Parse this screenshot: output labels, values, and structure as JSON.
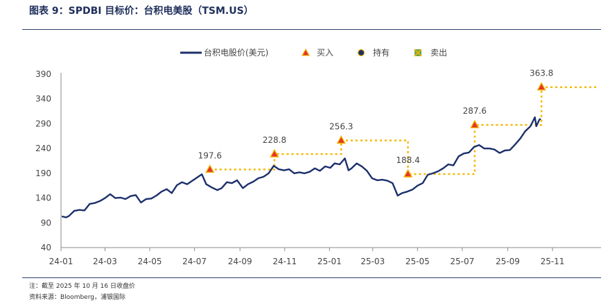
{
  "header": {
    "title": "图表 9：SPDBI 目标价：台积电美股（TSM.US）"
  },
  "footer": {
    "note": "注：截至 2025 年 10 月 16 日收盘价",
    "source": "资料来源：Bloomberg，浦银国际"
  },
  "colors": {
    "line": "#1b2f6b",
    "buy_fill": "#e7322b",
    "buy_stroke": "#f2b400",
    "dotted": "#f5b800",
    "hold_fill": "#1b2f6b",
    "sell_fill": "#6aa84f"
  },
  "chart_data": {
    "type": "line",
    "title": "",
    "xlabel": "",
    "ylabel": "",
    "ylim": [
      40,
      390
    ],
    "xlim": [
      "2024-01-01",
      "2025-12-31"
    ],
    "grid": false,
    "legend_position": "top-center",
    "y_ticks": [
      "40",
      "90",
      "140",
      "190",
      "240",
      "290",
      "340",
      "390"
    ],
    "x_ticks": [
      {
        "label": "24-01",
        "date": "2024-01-01"
      },
      {
        "label": "24-03",
        "date": "2024-03-01"
      },
      {
        "label": "24-05",
        "date": "2024-05-01"
      },
      {
        "label": "24-07",
        "date": "2024-07-01"
      },
      {
        "label": "24-09",
        "date": "2024-09-01"
      },
      {
        "label": "24-11",
        "date": "2024-11-01"
      },
      {
        "label": "25-01",
        "date": "2025-01-01"
      },
      {
        "label": "25-03",
        "date": "2025-03-01"
      },
      {
        "label": "25-05",
        "date": "2025-05-01"
      },
      {
        "label": "25-07",
        "date": "2025-07-01"
      },
      {
        "label": "25-09",
        "date": "2025-09-01"
      },
      {
        "label": "25-11",
        "date": "2025-11-01"
      }
    ],
    "legend": [
      {
        "label": "台积电股价(美元)",
        "kind": "line"
      },
      {
        "label": "买入",
        "kind": "buy"
      },
      {
        "label": "持有",
        "kind": "hold"
      },
      {
        "label": "卖出",
        "kind": "sell"
      }
    ],
    "series": [
      {
        "name": "台积电股价(美元)",
        "points": [
          [
            "2024-01-02",
            103
          ],
          [
            "2024-01-08",
            101
          ],
          [
            "2024-01-12",
            104
          ],
          [
            "2024-01-19",
            114
          ],
          [
            "2024-01-26",
            116
          ],
          [
            "2024-02-02",
            115
          ],
          [
            "2024-02-09",
            128
          ],
          [
            "2024-02-16",
            130
          ],
          [
            "2024-02-23",
            134
          ],
          [
            "2024-03-01",
            140
          ],
          [
            "2024-03-08",
            148
          ],
          [
            "2024-03-15",
            140
          ],
          [
            "2024-03-22",
            141
          ],
          [
            "2024-03-29",
            138
          ],
          [
            "2024-04-05",
            144
          ],
          [
            "2024-04-12",
            146
          ],
          [
            "2024-04-19",
            131
          ],
          [
            "2024-04-26",
            138
          ],
          [
            "2024-05-03",
            139
          ],
          [
            "2024-05-10",
            145
          ],
          [
            "2024-05-17",
            153
          ],
          [
            "2024-05-24",
            158
          ],
          [
            "2024-05-31",
            150
          ],
          [
            "2024-06-07",
            166
          ],
          [
            "2024-06-14",
            172
          ],
          [
            "2024-06-21",
            168
          ],
          [
            "2024-06-28",
            175
          ],
          [
            "2024-07-05",
            182
          ],
          [
            "2024-07-11",
            188
          ],
          [
            "2024-07-17",
            168
          ],
          [
            "2024-07-24",
            162
          ],
          [
            "2024-08-01",
            156
          ],
          [
            "2024-08-07",
            160
          ],
          [
            "2024-08-14",
            172
          ],
          [
            "2024-08-21",
            170
          ],
          [
            "2024-08-28",
            176
          ],
          [
            "2024-09-05",
            160
          ],
          [
            "2024-09-12",
            168
          ],
          [
            "2024-09-19",
            173
          ],
          [
            "2024-09-26",
            180
          ],
          [
            "2024-10-03",
            183
          ],
          [
            "2024-10-10",
            190
          ],
          [
            "2024-10-17",
            205
          ],
          [
            "2024-10-24",
            198
          ],
          [
            "2024-10-31",
            196
          ],
          [
            "2024-11-07",
            198
          ],
          [
            "2024-11-14",
            190
          ],
          [
            "2024-11-21",
            192
          ],
          [
            "2024-11-28",
            190
          ],
          [
            "2024-12-05",
            193
          ],
          [
            "2024-12-12",
            200
          ],
          [
            "2024-12-19",
            195
          ],
          [
            "2024-12-26",
            204
          ],
          [
            "2025-01-02",
            201
          ],
          [
            "2025-01-08",
            210
          ],
          [
            "2025-01-15",
            208
          ],
          [
            "2025-01-22",
            220
          ],
          [
            "2025-01-27",
            196
          ],
          [
            "2025-01-31",
            200
          ],
          [
            "2025-02-07",
            210
          ],
          [
            "2025-02-14",
            204
          ],
          [
            "2025-02-21",
            195
          ],
          [
            "2025-02-28",
            180
          ],
          [
            "2025-03-07",
            176
          ],
          [
            "2025-03-14",
            177
          ],
          [
            "2025-03-21",
            175
          ],
          [
            "2025-03-28",
            170
          ],
          [
            "2025-04-04",
            145
          ],
          [
            "2025-04-10",
            150
          ],
          [
            "2025-04-17",
            153
          ],
          [
            "2025-04-24",
            157
          ],
          [
            "2025-05-01",
            165
          ],
          [
            "2025-05-08",
            170
          ],
          [
            "2025-05-15",
            187
          ],
          [
            "2025-05-22",
            190
          ],
          [
            "2025-05-29",
            194
          ],
          [
            "2025-06-05",
            200
          ],
          [
            "2025-06-12",
            208
          ],
          [
            "2025-06-19",
            206
          ],
          [
            "2025-06-26",
            224
          ],
          [
            "2025-07-03",
            230
          ],
          [
            "2025-07-10",
            232
          ],
          [
            "2025-07-17",
            243
          ],
          [
            "2025-07-24",
            247
          ],
          [
            "2025-07-31",
            240
          ],
          [
            "2025-08-07",
            240
          ],
          [
            "2025-08-14",
            238
          ],
          [
            "2025-08-21",
            231
          ],
          [
            "2025-08-28",
            236
          ],
          [
            "2025-09-04",
            237
          ],
          [
            "2025-09-11",
            248
          ],
          [
            "2025-09-18",
            260
          ],
          [
            "2025-09-25",
            275
          ],
          [
            "2025-10-02",
            285
          ],
          [
            "2025-10-08",
            303
          ],
          [
            "2025-10-10",
            285
          ],
          [
            "2025-10-14",
            298
          ],
          [
            "2025-10-16",
            300
          ]
        ]
      }
    ],
    "target_prices": [
      {
        "date": "2024-07-22",
        "value": 197.6,
        "label": "197.6",
        "rating": "buy"
      },
      {
        "date": "2024-10-18",
        "value": 228.8,
        "label": "228.8",
        "rating": "buy"
      },
      {
        "date": "2025-01-17",
        "value": 256.3,
        "label": "256.3",
        "rating": "buy"
      },
      {
        "date": "2025-04-18",
        "value": 188.4,
        "label": "188.4",
        "rating": "buy"
      },
      {
        "date": "2025-07-18",
        "value": 287.6,
        "label": "287.6",
        "rating": "buy"
      },
      {
        "date": "2025-10-17",
        "value": 363.8,
        "label": "363.8",
        "rating": "buy"
      }
    ],
    "target_line_end_date": "2025-12-31"
  }
}
